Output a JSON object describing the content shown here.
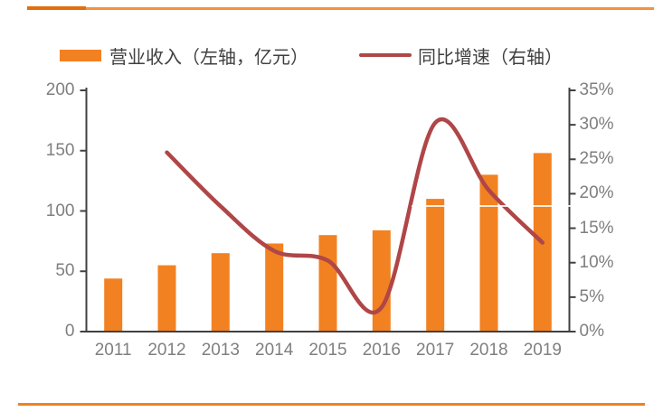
{
  "page": {
    "background": "#FFFFFF"
  },
  "decor": {
    "top_rule_dark_color": "#E06F0E",
    "top_rule_color": "#F5913E",
    "bottom_rule_color": "#EF8122"
  },
  "chart_data": {
    "type": "combo-bar-line",
    "title": "",
    "categories": [
      "2011",
      "2012",
      "2013",
      "2014",
      "2015",
      "2016",
      "2017",
      "2018",
      "2019"
    ],
    "series": [
      {
        "name": "营业收入（左轴，亿元）",
        "type": "bar",
        "axis": "left",
        "color": "#F28122",
        "values": [
          44,
          55,
          65,
          73,
          80,
          84,
          110,
          130,
          148
        ]
      },
      {
        "name": "同比增速（右轴）",
        "type": "line",
        "axis": "right",
        "color": "#AF4647",
        "unit": "%",
        "values": [
          null,
          26,
          18.2,
          11.7,
          10.3,
          3.5,
          30.3,
          20.5,
          12.9
        ]
      }
    ],
    "left_axis": {
      "label": "",
      "min": 0,
      "max": 200,
      "ticks": [
        "200",
        "150",
        "100",
        "50",
        "0"
      ]
    },
    "right_axis": {
      "label": "",
      "min": 0,
      "max": 35,
      "ticks": [
        "35%",
        "30%",
        "25%",
        "20%",
        "15%",
        "10%",
        "5%",
        "0%"
      ]
    },
    "legend_position": "top",
    "gridlines": false,
    "axis_color": "#404040",
    "tick_label_color": "#7F7F7F"
  }
}
